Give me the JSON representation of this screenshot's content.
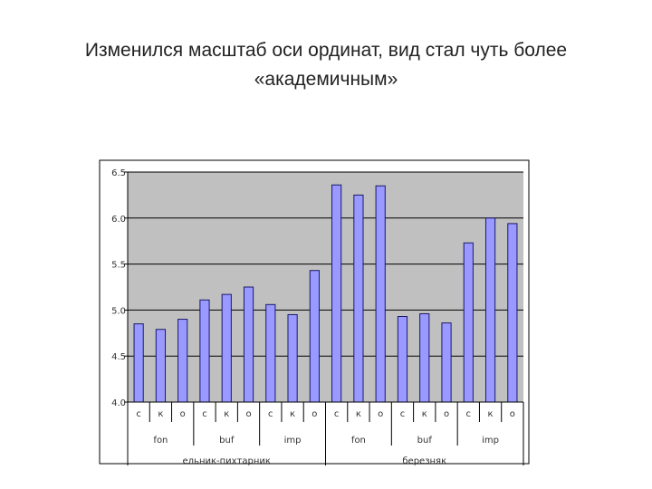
{
  "slide": {
    "title_line1": "Изменился масштаб оси ординат, вид стал чуть более",
    "title_line2": "«академичным»"
  },
  "chart_data": {
    "type": "bar",
    "ylim": [
      4.0,
      6.5
    ],
    "yticks": [
      "6.5",
      "6.0",
      "5.5",
      "5.0",
      "4.5",
      "4.0"
    ],
    "ytick_values": [
      6.5,
      6.0,
      5.5,
      5.0,
      4.5,
      4.0
    ],
    "grid": true,
    "categories": [
      "с",
      "к",
      "о",
      "с",
      "к",
      "о",
      "с",
      "к",
      "о",
      "с",
      "к",
      "о",
      "с",
      "к",
      "о",
      "с",
      "к",
      "о"
    ],
    "groups_level2": [
      "fon",
      "buf",
      "imp",
      "fon",
      "buf",
      "imp"
    ],
    "groups_level3": [
      "ельник-пихтарник",
      "березняк"
    ],
    "values": [
      4.85,
      4.79,
      4.9,
      5.11,
      5.17,
      5.25,
      5.06,
      4.95,
      5.43,
      6.36,
      6.25,
      6.35,
      4.93,
      4.96,
      4.86,
      5.73,
      6.0,
      5.94
    ],
    "colors": {
      "bar": "#9999ff",
      "bar_stroke": "#1a1a66",
      "plot_bg": "#c0c0c0",
      "grid": "#000000"
    }
  }
}
